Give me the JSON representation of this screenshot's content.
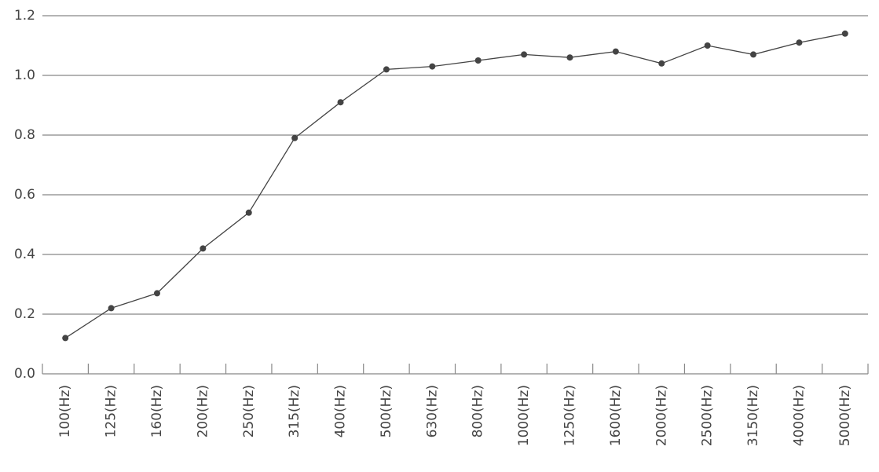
{
  "chart_data": {
    "type": "line",
    "categories": [
      "100(Hz)",
      "125(Hz)",
      "160(Hz)",
      "200(Hz)",
      "250(Hz)",
      "315(Hz)",
      "400(Hz)",
      "500(Hz)",
      "630(Hz)",
      "800(Hz)",
      "1000(Hz)",
      "1250(Hz)",
      "1600(Hz)",
      "2000(Hz)",
      "2500(Hz)",
      "3150(Hz)",
      "4000(Hz)",
      "5000(Hz)"
    ],
    "values": [
      0.12,
      0.22,
      0.27,
      0.42,
      0.54,
      0.79,
      0.91,
      1.02,
      1.03,
      1.05,
      1.07,
      1.06,
      1.08,
      1.04,
      1.1,
      1.07,
      1.11,
      1.14
    ],
    "color": "#444444",
    "ylim": [
      0,
      1.2
    ],
    "yticks": [
      {
        "value": 0,
        "label": "0.0"
      },
      0.2,
      0.4,
      0.6,
      0.8,
      {
        "value": 1,
        "label": "1.0"
      },
      1.2
    ],
    "grid": true
  }
}
